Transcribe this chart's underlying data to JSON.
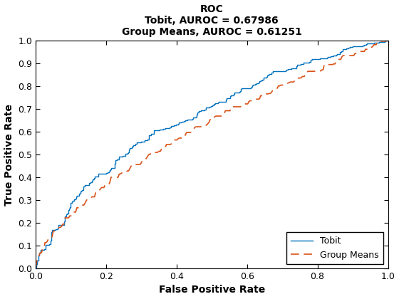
{
  "title_line1": "ROC",
  "title_line2": "Tobit, AUROC = 0.67986",
  "title_line3": "Group Means, AUROC = 0.61251",
  "xlabel": "False Positive Rate",
  "ylabel": "True Positive Rate",
  "xlim": [
    0,
    1
  ],
  "ylim": [
    0,
    1
  ],
  "tobit_color": "#0072BD",
  "group_means_color": "#D95319",
  "tobit_label": "Tobit",
  "group_means_label": "Group Means",
  "background_color": "#FFFFFF",
  "legend_loc": "lower right",
  "xticks": [
    0,
    0.2,
    0.4,
    0.6,
    0.8,
    1.0
  ],
  "yticks": [
    0,
    0.1,
    0.2,
    0.3,
    0.4,
    0.5,
    0.6,
    0.7,
    0.8,
    0.9,
    1.0
  ],
  "title_fontsize": 10,
  "axis_label_fontsize": 10,
  "tick_fontsize": 9,
  "legend_fontsize": 9,
  "tobit_linewidth": 1.0,
  "group_linewidth": 1.2
}
